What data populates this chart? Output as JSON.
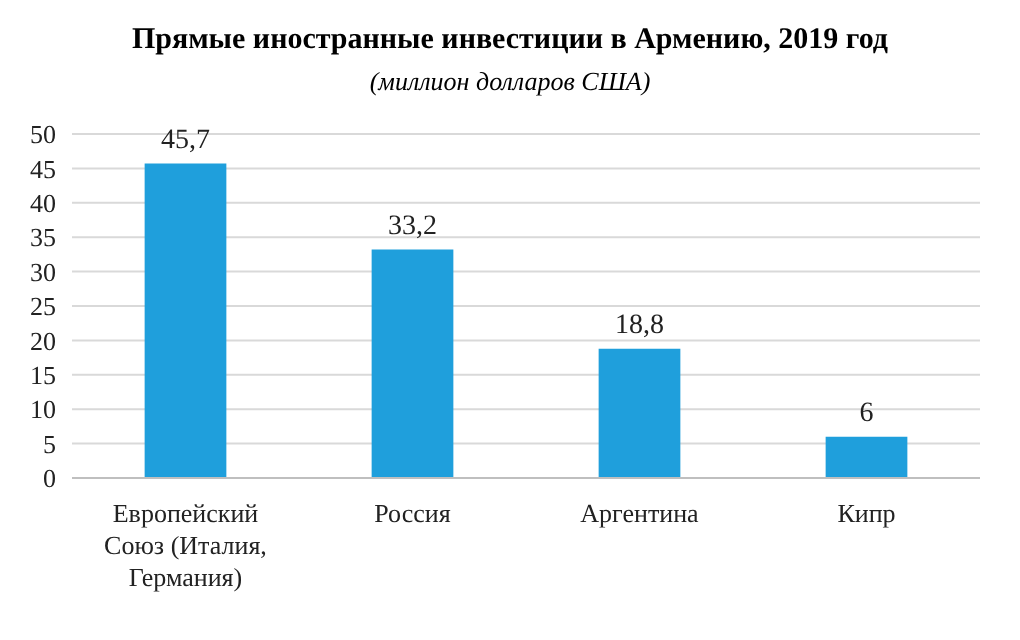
{
  "chart_data": {
    "type": "bar",
    "title": "Прямые иностранные инвестиции в Армению, 2019 год",
    "subtitle": "(миллион долларов США)",
    "categories": [
      "Европейский Союз (Италия, Германия)",
      "Россия",
      "Аргентина",
      "Кипр"
    ],
    "values": [
      45.7,
      33.2,
      18.8,
      6
    ],
    "color": "#1f9fdc",
    "value_labels": [
      "45,7",
      "33,2",
      "18,8",
      "6"
    ],
    "ylim": [
      0,
      50
    ],
    "yticks": [
      0,
      5,
      10,
      15,
      20,
      25,
      30,
      35,
      40,
      45,
      50
    ],
    "grid": "y"
  }
}
